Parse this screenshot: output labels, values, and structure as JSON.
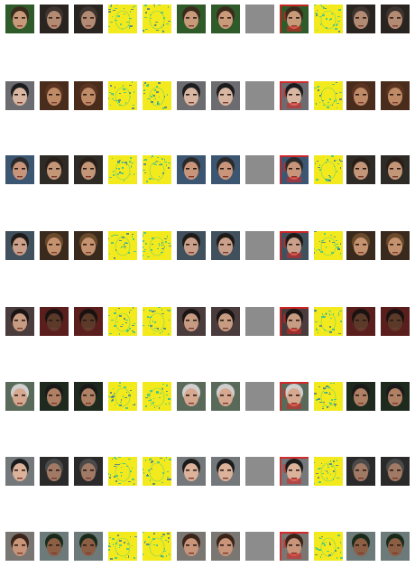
{
  "figure": {
    "rows": 8,
    "columns": 12,
    "column_kinds": [
      "face",
      "face",
      "face",
      "saliency",
      "saliency",
      "face",
      "face",
      "blank",
      "face-red-overlay",
      "saliency",
      "face",
      "face"
    ],
    "colors": {
      "background": "#ffffff",
      "blank_tile": "#8c8c8c",
      "saliency_base": "#f2ea1c",
      "saliency_accent": "#2bbf9a",
      "saliency_dark": "#3a6f9a",
      "overlay_red": "#e02020"
    },
    "rows_data": [
      {
        "bg_a": "#2f5a2a",
        "skin_a": "#c89a7a",
        "hair_a": "#3a2a1c",
        "bg_b": "#2a2420",
        "skin_b": "#b38b73",
        "hair_b": "#3d3430"
      },
      {
        "bg_a": "#6c6c70",
        "skin_a": "#d8b6a2",
        "hair_a": "#1c1c1e",
        "bg_b": "#4a2c1c",
        "skin_b": "#bf8a66",
        "hair_b": "#5a3420"
      },
      {
        "bg_a": "#3c5672",
        "skin_a": "#c9957a",
        "hair_a": "#2a2a2a",
        "bg_b": "#2e2a26",
        "skin_b": "#c39678",
        "hair_b": "#2a1f18"
      },
      {
        "bg_a": "#40505c",
        "skin_a": "#caa08a",
        "hair_a": "#1e1a18",
        "bg_b": "#3a2a1e",
        "skin_b": "#c4926e",
        "hair_b": "#6a4a2a"
      },
      {
        "bg_a": "#4a3c3c",
        "skin_a": "#c89c82",
        "hair_a": "#1a1414",
        "bg_b": "#5a1e1c",
        "skin_b": "#5b3a2a",
        "hair_b": "#1a1210"
      },
      {
        "bg_a": "#5a6a5a",
        "skin_a": "#d7a890",
        "hair_a": "#cfcfcf",
        "bg_b": "#1e2a1e",
        "skin_b": "#b08064",
        "hair_b": "#1a1a1a"
      },
      {
        "bg_a": "#74787a",
        "skin_a": "#dcb29a",
        "hair_a": "#1a1a1a",
        "bg_b": "#2a2a2a",
        "skin_b": "#a07a64",
        "hair_b": "#4a4a4a"
      },
      {
        "bg_a": "#7a7672",
        "skin_a": "#c8947a",
        "hair_a": "#3a241a",
        "bg_b": "#6c7a7a",
        "skin_b": "#8c5e44",
        "hair_b": "#1a2a1a"
      }
    ]
  }
}
